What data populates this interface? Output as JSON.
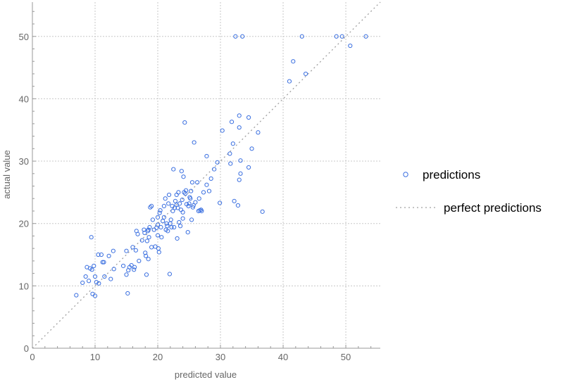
{
  "chart_data": {
    "type": "scatter",
    "title": "",
    "xlabel": "predicted value",
    "ylabel": "actual value",
    "xlim": [
      0,
      55.5
    ],
    "ylim": [
      0,
      55.5
    ],
    "xticks": [
      0,
      10,
      20,
      30,
      40,
      50
    ],
    "yticks": [
      0,
      10,
      20,
      30,
      40,
      50
    ],
    "grid": true,
    "legend_position": "right",
    "colors": {
      "points": "#3a6fe0",
      "reference": "#a0a0a0",
      "grid": "#c8c8c8",
      "axis": "#999999"
    },
    "series": [
      {
        "name": "predictions",
        "kind": "points",
        "points": [
          [
            7.0,
            8.5
          ],
          [
            8.0,
            10.5
          ],
          [
            8.5,
            11.5
          ],
          [
            8.7,
            13.0
          ],
          [
            9.0,
            10.8
          ],
          [
            9.2,
            12.8
          ],
          [
            9.4,
            17.8
          ],
          [
            9.5,
            12.6
          ],
          [
            9.6,
            8.7
          ],
          [
            9.8,
            13.2
          ],
          [
            10.0,
            11.5
          ],
          [
            10.0,
            8.4
          ],
          [
            10.2,
            10.6
          ],
          [
            10.5,
            15.0
          ],
          [
            10.6,
            10.4
          ],
          [
            11.0,
            15.0
          ],
          [
            11.2,
            13.8
          ],
          [
            11.4,
            13.8
          ],
          [
            11.5,
            11.5
          ],
          [
            12.2,
            14.8
          ],
          [
            12.5,
            11.1
          ],
          [
            12.9,
            15.6
          ],
          [
            13.0,
            12.7
          ],
          [
            14.5,
            13.2
          ],
          [
            15.0,
            11.8
          ],
          [
            15.0,
            15.6
          ],
          [
            15.2,
            8.8
          ],
          [
            15.3,
            12.5
          ],
          [
            15.5,
            13.0
          ],
          [
            15.8,
            13.3
          ],
          [
            16.0,
            16.2
          ],
          [
            16.2,
            12.6
          ],
          [
            16.3,
            13.0
          ],
          [
            16.5,
            15.7
          ],
          [
            16.6,
            18.8
          ],
          [
            16.8,
            18.3
          ],
          [
            17.0,
            14.0
          ],
          [
            17.5,
            17.3
          ],
          [
            17.8,
            19.0
          ],
          [
            17.9,
            18.5
          ],
          [
            18.0,
            15.3
          ],
          [
            18.1,
            14.8
          ],
          [
            18.2,
            11.8
          ],
          [
            18.3,
            17.2
          ],
          [
            18.4,
            18.8
          ],
          [
            18.5,
            19.0
          ],
          [
            18.5,
            14.3
          ],
          [
            18.6,
            17.8
          ],
          [
            18.7,
            19.4
          ],
          [
            18.8,
            22.6
          ],
          [
            19.0,
            22.8
          ],
          [
            19.0,
            16.2
          ],
          [
            19.2,
            20.6
          ],
          [
            19.4,
            19.0
          ],
          [
            19.6,
            16.3
          ],
          [
            19.8,
            19.3
          ],
          [
            20.0,
            21.0
          ],
          [
            20.0,
            19.8
          ],
          [
            20.0,
            18.1
          ],
          [
            20.1,
            16.0
          ],
          [
            20.2,
            15.4
          ],
          [
            20.3,
            21.7
          ],
          [
            20.4,
            22.1
          ],
          [
            20.5,
            19.4
          ],
          [
            20.6,
            17.8
          ],
          [
            20.8,
            20.4
          ],
          [
            21.0,
            21.0
          ],
          [
            21.0,
            22.8
          ],
          [
            21.2,
            24.0
          ],
          [
            21.3,
            19.0
          ],
          [
            21.4,
            20.0
          ],
          [
            21.5,
            19.6
          ],
          [
            21.6,
            18.8
          ],
          [
            21.7,
            23.2
          ],
          [
            21.8,
            24.6
          ],
          [
            21.9,
            11.9
          ],
          [
            22.0,
            20.0
          ],
          [
            22.1,
            20.6
          ],
          [
            22.2,
            19.4
          ],
          [
            22.3,
            22.8
          ],
          [
            22.4,
            22.0
          ],
          [
            22.5,
            28.7
          ],
          [
            22.6,
            19.4
          ],
          [
            22.7,
            22.5
          ],
          [
            22.8,
            23.6
          ],
          [
            23.0,
            24.6
          ],
          [
            23.0,
            23.0
          ],
          [
            23.1,
            17.6
          ],
          [
            23.2,
            22.5
          ],
          [
            23.3,
            25.0
          ],
          [
            23.4,
            20.2
          ],
          [
            23.5,
            23.2
          ],
          [
            23.6,
            19.6
          ],
          [
            23.7,
            22.2
          ],
          [
            23.8,
            28.4
          ],
          [
            23.9,
            23.8
          ],
          [
            24.0,
            21.8
          ],
          [
            24.0,
            20.8
          ],
          [
            24.1,
            27.5
          ],
          [
            24.2,
            25.0
          ],
          [
            24.3,
            36.2
          ],
          [
            24.4,
            24.8
          ],
          [
            24.5,
            25.3
          ],
          [
            24.6,
            23.1
          ],
          [
            24.8,
            18.6
          ],
          [
            24.9,
            22.8
          ],
          [
            25.0,
            23.2
          ],
          [
            25.1,
            24.2
          ],
          [
            25.2,
            24.0
          ],
          [
            25.3,
            25.2
          ],
          [
            25.4,
            20.6
          ],
          [
            25.5,
            26.6
          ],
          [
            25.6,
            22.6
          ],
          [
            25.7,
            22.9
          ],
          [
            25.8,
            33.0
          ],
          [
            26.0,
            23.4
          ],
          [
            26.3,
            26.6
          ],
          [
            26.5,
            22.0
          ],
          [
            26.6,
            24.0
          ],
          [
            26.7,
            22.1
          ],
          [
            26.9,
            22.2
          ],
          [
            27.0,
            22.0
          ],
          [
            27.3,
            25.0
          ],
          [
            27.8,
            30.8
          ],
          [
            27.8,
            26.2
          ],
          [
            28.2,
            25.2
          ],
          [
            28.5,
            27.2
          ],
          [
            29.0,
            28.7
          ],
          [
            29.5,
            29.8
          ],
          [
            29.9,
            23.3
          ],
          [
            30.3,
            34.9
          ],
          [
            31.5,
            31.2
          ],
          [
            31.6,
            29.6
          ],
          [
            31.8,
            36.3
          ],
          [
            32.0,
            32.8
          ],
          [
            32.2,
            23.6
          ],
          [
            32.4,
            50.0
          ],
          [
            32.8,
            22.9
          ],
          [
            33.0,
            27.0
          ],
          [
            33.0,
            35.4
          ],
          [
            33.0,
            37.3
          ],
          [
            33.2,
            28.0
          ],
          [
            33.2,
            30.1
          ],
          [
            33.5,
            50.0
          ],
          [
            34.5,
            37.0
          ],
          [
            34.5,
            29.0
          ],
          [
            35.0,
            32.0
          ],
          [
            36.0,
            34.6
          ],
          [
            36.7,
            21.9
          ],
          [
            41.0,
            42.8
          ],
          [
            41.6,
            46.0
          ],
          [
            43.0,
            50.0
          ],
          [
            43.6,
            44.0
          ],
          [
            48.5,
            50.0
          ],
          [
            49.4,
            50.0
          ],
          [
            50.7,
            48.5
          ],
          [
            53.2,
            50.0
          ]
        ]
      },
      {
        "name": "perfect predictions",
        "kind": "dashed-line",
        "points": [
          [
            0,
            0
          ],
          [
            55.5,
            55.5
          ]
        ]
      }
    ]
  }
}
